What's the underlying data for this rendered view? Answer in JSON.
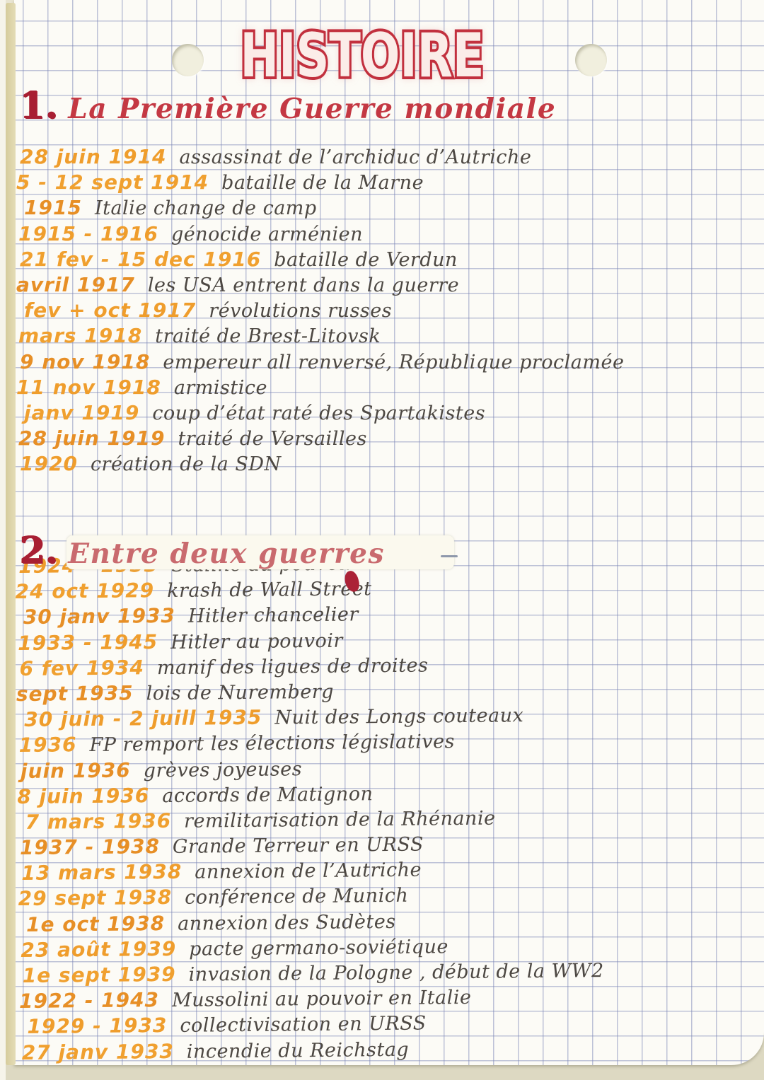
{
  "page": {
    "title": "HISTOIRE",
    "colors": {
      "title_red": "#c2303e",
      "heading_red": "#c43843",
      "date_orange": "#f0a02f",
      "ink": "#4d4843",
      "grid_blue": "#7a84b6",
      "paper": "#fcfbf6",
      "edge_tan": "#dcd3a6"
    }
  },
  "sections": [
    {
      "number": "1.",
      "heading": "La Première Guerre mondiale",
      "entries": [
        {
          "date": "28 juin 1914",
          "event": "assassinat de l’archiduc d’Autriche"
        },
        {
          "date": "5 - 12 sept 1914",
          "event": "bataille de la Marne"
        },
        {
          "date": "1915",
          "event": "Italie change de camp"
        },
        {
          "date": "1915 - 1916",
          "event": "génocide arménien"
        },
        {
          "date": "21 fev - 15 dec 1916",
          "event": "bataille de Verdun"
        },
        {
          "date": "avril 1917",
          "event": "les USA entrent dans la guerre"
        },
        {
          "date": "fev + oct 1917",
          "event": "révolutions russes"
        },
        {
          "date": "mars 1918",
          "event": "traité de Brest-Litovsk"
        },
        {
          "date": "9 nov 1918",
          "event": "empereur all renversé, République proclamée"
        },
        {
          "date": "11 nov 1918",
          "event": "armistice"
        },
        {
          "date": "janv 1919",
          "event": "coup d’état raté des Spartakistes"
        },
        {
          "date": "28 juin 1919",
          "event": "traité de Versailles"
        },
        {
          "date": "1920",
          "event": "création de la SDN"
        }
      ]
    },
    {
      "number": "2.",
      "heading": "Entre deux guerres",
      "entries": [
        {
          "date": "1924 - 1953",
          "event": "Staline au pouvoir"
        },
        {
          "date": "24 oct 1929",
          "event": "krash de Wall Street"
        },
        {
          "date": "30 janv 1933",
          "event": "Hitler chancelier"
        },
        {
          "date": "1933 - 1945",
          "event": "Hitler au pouvoir"
        },
        {
          "date": "6 fev 1934",
          "event": "manif des ligues de droites"
        },
        {
          "date": "sept 1935",
          "event": "lois de Nuremberg"
        },
        {
          "date": "30 juin - 2 juill 1935",
          "event": "Nuit des Longs couteaux"
        },
        {
          "date": "1936",
          "event": "FP remport les élections législatives"
        },
        {
          "date": "juin 1936",
          "event": "grèves joyeuses"
        },
        {
          "date": "8 juin 1936",
          "event": "accords de Matignon"
        },
        {
          "date": "7 mars 1936",
          "event": "remilitarisation de la Rhénanie"
        },
        {
          "date": "1937 - 1938",
          "event": "Grande Terreur en URSS"
        },
        {
          "date": "13 mars 1938",
          "event": "annexion de l’Autriche"
        },
        {
          "date": "29 sept 1938",
          "event": "conférence de Munich"
        },
        {
          "date": "1e oct 1938",
          "event": "annexion des Sudètes"
        },
        {
          "date": "23 août 1939",
          "event": "pacte germano-soviétique"
        },
        {
          "date": "1e sept 1939",
          "event": "invasion de la Pologne , début de la WW2"
        },
        {
          "date": "1922 - 1943",
          "event": "Mussolini au pouvoir en Italie"
        },
        {
          "date": "1929 - 1933",
          "event": "collectivisation en URSS"
        },
        {
          "date": "27 janv 1933",
          "event": "incendie du Reichstag"
        }
      ]
    }
  ]
}
